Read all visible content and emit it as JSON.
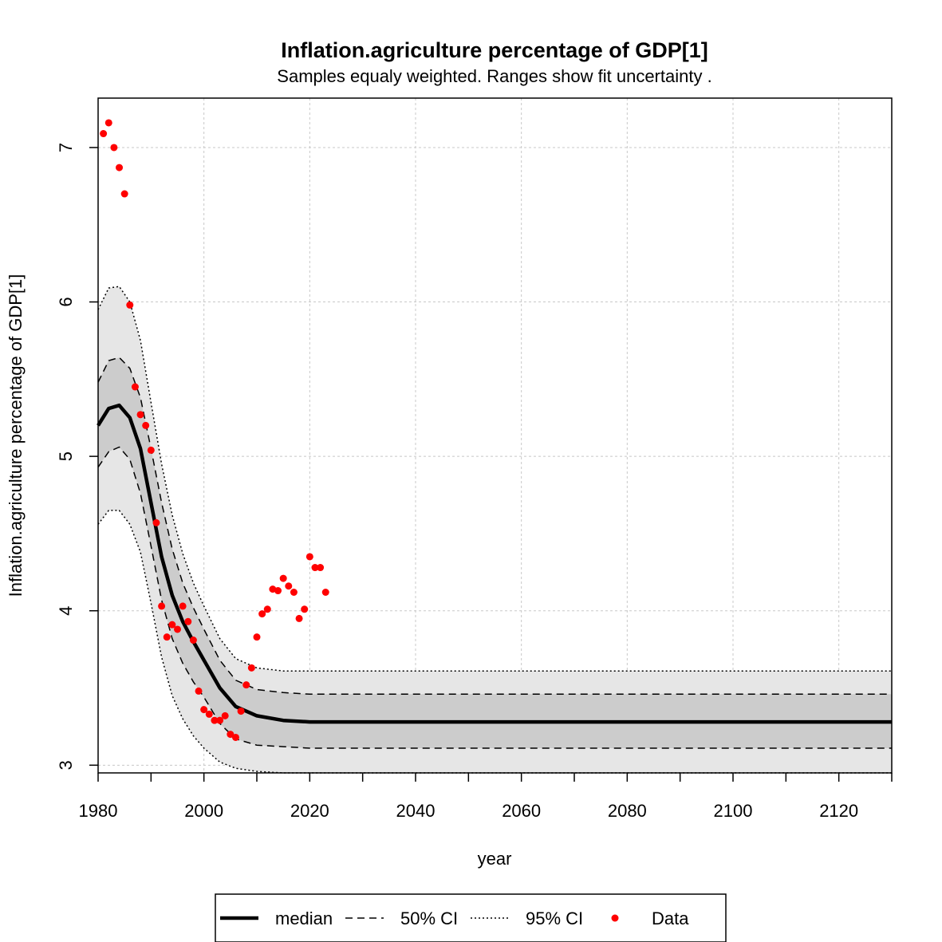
{
  "chart_data": {
    "type": "line",
    "title": "Inflation.agriculture percentage of GDP[1]",
    "subtitle": "Samples equaly weighted. Ranges show  fit uncertainty .",
    "xlabel": "year",
    "ylabel": "Inflation.agriculture percentage of GDP[1]",
    "xlim": [
      1980,
      2130
    ],
    "ylim": [
      2.95,
      7.32
    ],
    "x_ticks": [
      1980,
      2000,
      2020,
      2040,
      2060,
      2080,
      2100,
      2120
    ],
    "x_tick_labels": [
      "1980",
      "2000",
      "2020",
      "2040",
      "2060",
      "2080",
      "2100",
      "2120"
    ],
    "y_ticks": [
      3,
      4,
      5,
      6,
      7
    ],
    "y_tick_labels": [
      "3",
      "4",
      "5",
      "6",
      "7"
    ],
    "grid": true,
    "legend_placement": "bottom",
    "legend": [
      {
        "label": "median",
        "style": "solid-thick"
      },
      {
        "label": "50% CI",
        "style": "dashed"
      },
      {
        "label": "95% CI",
        "style": "dotted"
      },
      {
        "label": "Data",
        "style": "point"
      }
    ],
    "colors": {
      "median": "#000000",
      "ci50_fill": "#cccccc",
      "ci95_fill": "#e6e6e6",
      "data": "#ff0000",
      "grid": "#c8c8c8"
    },
    "series": [
      {
        "key": "median",
        "x": [
          1980,
          1982,
          1984,
          1986,
          1988,
          1990,
          1992,
          1994,
          1996,
          1998,
          2000,
          2003,
          2006,
          2010,
          2015,
          2020,
          2025,
          2030,
          2050,
          2130
        ],
        "y": [
          5.2,
          5.31,
          5.33,
          5.25,
          5.05,
          4.7,
          4.35,
          4.1,
          3.93,
          3.8,
          3.68,
          3.5,
          3.38,
          3.32,
          3.29,
          3.28,
          3.28,
          3.28,
          3.28,
          3.28
        ]
      },
      {
        "key": "ci50_upper",
        "x": [
          1980,
          1982,
          1984,
          1986,
          1988,
          1990,
          1992,
          1994,
          1996,
          1998,
          2000,
          2003,
          2006,
          2010,
          2015,
          2020,
          2025,
          2030,
          2050,
          2130
        ],
        "y": [
          5.48,
          5.62,
          5.64,
          5.57,
          5.38,
          5.05,
          4.7,
          4.4,
          4.18,
          4.02,
          3.88,
          3.68,
          3.55,
          3.49,
          3.47,
          3.46,
          3.46,
          3.46,
          3.46,
          3.46
        ]
      },
      {
        "key": "ci50_lower",
        "x": [
          1980,
          1982,
          1984,
          1986,
          1988,
          1990,
          1992,
          1994,
          1996,
          1998,
          2000,
          2003,
          2006,
          2010,
          2015,
          2020,
          2025,
          2030,
          2050,
          2130
        ],
        "y": [
          4.93,
          5.03,
          5.06,
          4.98,
          4.76,
          4.42,
          4.07,
          3.82,
          3.66,
          3.54,
          3.44,
          3.27,
          3.17,
          3.13,
          3.12,
          3.11,
          3.11,
          3.11,
          3.11,
          3.11
        ]
      },
      {
        "key": "ci95_upper",
        "x": [
          1980,
          1982,
          1984,
          1986,
          1988,
          1990,
          1992,
          1994,
          1996,
          1998,
          2000,
          2003,
          2006,
          2010,
          2015,
          2020,
          2025,
          2030,
          2050,
          2130
        ],
        "y": [
          5.95,
          6.09,
          6.1,
          6.0,
          5.75,
          5.35,
          4.95,
          4.62,
          4.37,
          4.18,
          4.03,
          3.82,
          3.69,
          3.63,
          3.61,
          3.61,
          3.61,
          3.61,
          3.61,
          3.61
        ]
      },
      {
        "key": "ci95_lower",
        "x": [
          1980,
          1982,
          1984,
          1986,
          1988,
          1990,
          1992,
          1994,
          1996,
          1998,
          2000,
          2003,
          2006,
          2010,
          2015,
          2020,
          2025,
          2030,
          2050,
          2130
        ],
        "y": [
          4.56,
          4.65,
          4.65,
          4.56,
          4.38,
          4.05,
          3.7,
          3.45,
          3.3,
          3.19,
          3.11,
          3.02,
          2.98,
          2.96,
          2.95,
          2.95,
          2.95,
          2.95,
          2.95,
          2.95
        ]
      }
    ],
    "points": {
      "name": "Data",
      "x": [
        1981,
        1982,
        1983,
        1984,
        1985,
        1986,
        1987,
        1988,
        1989,
        1990,
        1991,
        1992,
        1993,
        1994,
        1995,
        1996,
        1997,
        1998,
        1999,
        2000,
        2001,
        2002,
        2003,
        2004,
        2005,
        2006,
        2007,
        2008,
        2009,
        2010,
        2011,
        2012,
        2013,
        2014,
        2015,
        2016,
        2017,
        2018,
        2019,
        2020,
        2021,
        2022,
        2023
      ],
      "y": [
        7.09,
        7.16,
        7.0,
        6.87,
        6.7,
        5.98,
        5.45,
        5.27,
        5.2,
        5.04,
        4.57,
        4.03,
        3.83,
        3.91,
        3.88,
        4.03,
        3.93,
        3.81,
        3.48,
        3.36,
        3.33,
        3.29,
        3.29,
        3.32,
        3.2,
        3.18,
        3.35,
        3.52,
        3.63,
        3.83,
        3.98,
        4.01,
        4.14,
        4.13,
        4.21,
        4.16,
        4.12,
        3.95,
        4.01,
        4.35,
        4.28,
        4.28,
        4.12
      ]
    }
  }
}
